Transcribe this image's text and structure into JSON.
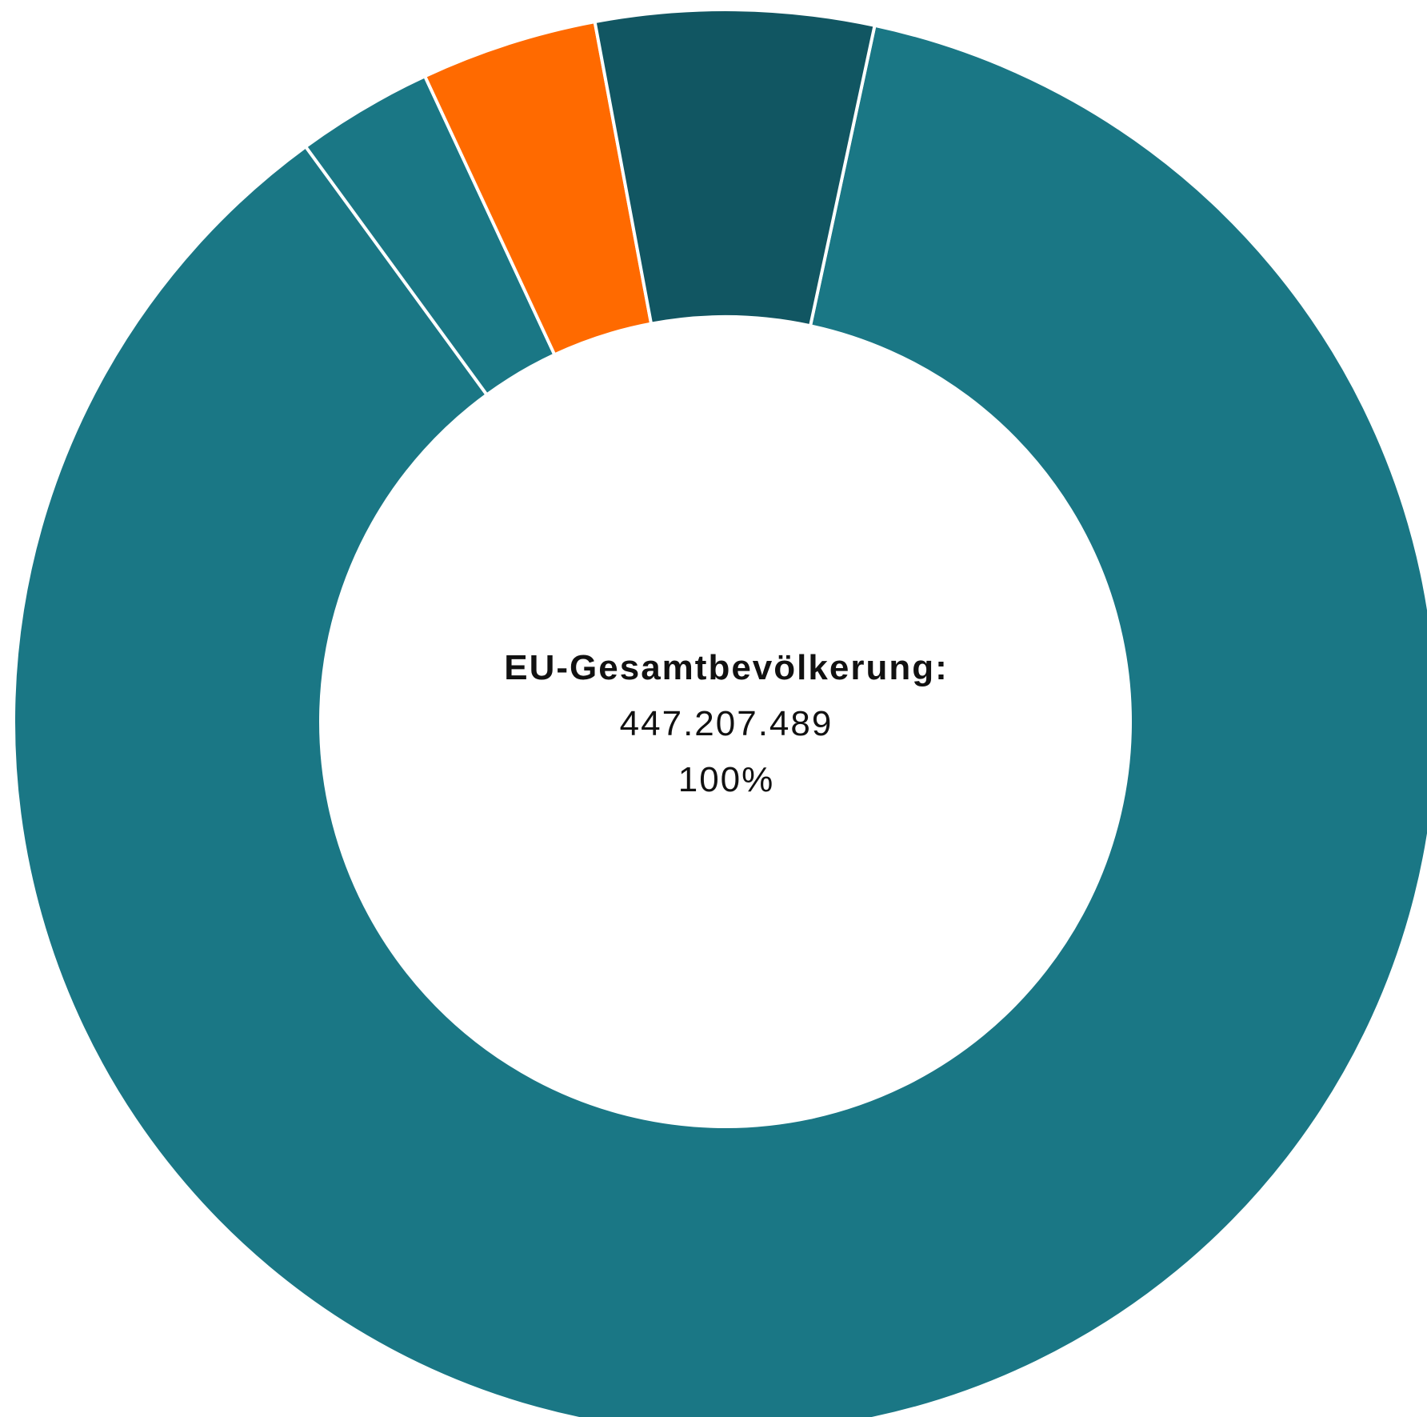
{
  "center": {
    "label": "EU-Gesamtbevölkerung:",
    "value": "447.207.489",
    "percent": "100%"
  },
  "chart_data": {
    "type": "pie",
    "donut": true,
    "title": "",
    "values": [
      86.6,
      3.1,
      4.0,
      6.3
    ],
    "colors": [
      "#1a7785",
      "#1a7785",
      "#ff6a00",
      "#115662"
    ],
    "separator_color": "#ffffff"
  }
}
